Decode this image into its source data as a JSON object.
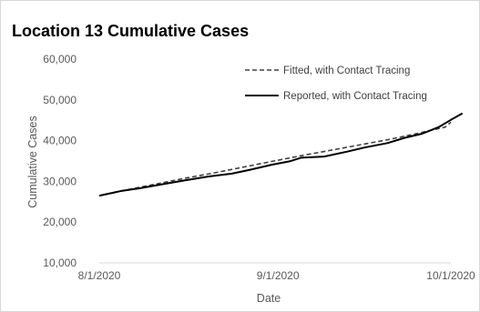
{
  "chart_data": {
    "type": "line",
    "title": "Location 13 Cumulative Cases",
    "xlabel": "Date",
    "ylabel": "Cumulative Cases",
    "x_ticks": [
      "8/1/2020",
      "9/1/2020",
      "10/1/2020"
    ],
    "x_domain": [
      "2020-08-01",
      "2020-10-01"
    ],
    "ylim": [
      10000,
      60000
    ],
    "y_ticks": [
      10000,
      20000,
      30000,
      40000,
      50000,
      60000
    ],
    "y_tick_labels": [
      "10,000",
      "20,000",
      "30,000",
      "40,000",
      "50,000",
      "60,000"
    ],
    "grid": false,
    "legend_position": "top-right",
    "series": [
      {
        "name": "Fitted, with Contact Tracing",
        "style": "dashed",
        "color": "#404040",
        "points": [
          {
            "date": "2020-08-01",
            "value": 26500
          },
          {
            "date": "2020-08-06",
            "value": 28000
          },
          {
            "date": "2020-08-11",
            "value": 29400
          },
          {
            "date": "2020-08-16",
            "value": 30800
          },
          {
            "date": "2020-08-21",
            "value": 32100
          },
          {
            "date": "2020-08-26",
            "value": 33500
          },
          {
            "date": "2020-08-31",
            "value": 34900
          },
          {
            "date": "2020-09-05",
            "value": 36300
          },
          {
            "date": "2020-09-10",
            "value": 37600
          },
          {
            "date": "2020-09-15",
            "value": 38900
          },
          {
            "date": "2020-09-20",
            "value": 40200
          },
          {
            "date": "2020-09-25",
            "value": 41700
          },
          {
            "date": "2020-09-30",
            "value": 43300
          },
          {
            "date": "2020-10-01",
            "value": 44500
          }
        ]
      },
      {
        "name": "Reported, with Contact Tracing",
        "style": "solid",
        "color": "#000000",
        "points": [
          {
            "date": "2020-08-01",
            "value": 26500
          },
          {
            "date": "2020-08-05",
            "value": 27700
          },
          {
            "date": "2020-08-08",
            "value": 28300
          },
          {
            "date": "2020-08-12",
            "value": 29300
          },
          {
            "date": "2020-08-16",
            "value": 30300
          },
          {
            "date": "2020-08-20",
            "value": 31200
          },
          {
            "date": "2020-08-24",
            "value": 31900
          },
          {
            "date": "2020-08-27",
            "value": 32800
          },
          {
            "date": "2020-08-31",
            "value": 34100
          },
          {
            "date": "2020-09-03",
            "value": 34900
          },
          {
            "date": "2020-09-05",
            "value": 35800
          },
          {
            "date": "2020-09-09",
            "value": 36100
          },
          {
            "date": "2020-09-13",
            "value": 37300
          },
          {
            "date": "2020-09-16",
            "value": 38300
          },
          {
            "date": "2020-09-20",
            "value": 39400
          },
          {
            "date": "2020-09-23",
            "value": 40700
          },
          {
            "date": "2020-09-26",
            "value": 41700
          },
          {
            "date": "2020-09-29",
            "value": 43400
          },
          {
            "date": "2020-10-01",
            "value": 45100
          },
          {
            "date": "2020-10-03",
            "value": 46700
          }
        ]
      }
    ]
  }
}
